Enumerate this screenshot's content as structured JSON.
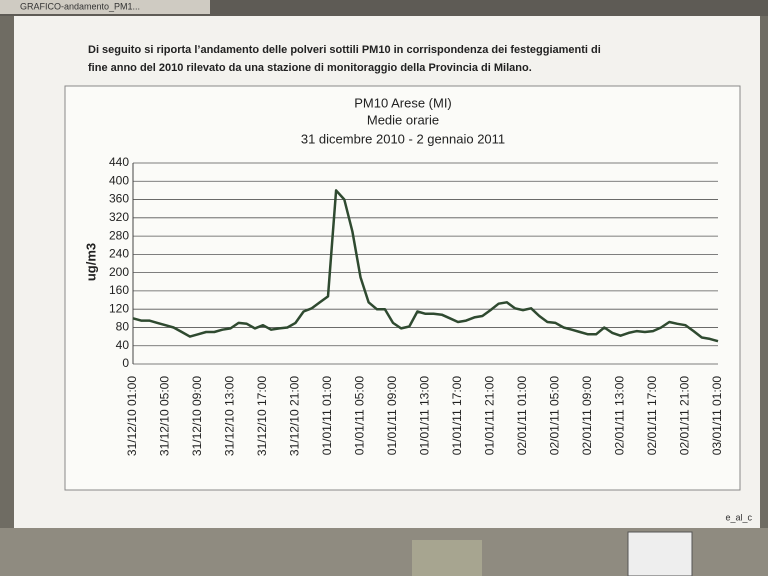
{
  "screen": {
    "tab_title": "GRAFICO-andamento_PM1...",
    "document_text": [
      "Di seguito si riporta l’andamento delle polveri sottili PM10 in corrispondenza dei festeggiamenti di",
      "fine anno del 2010 rilevato da una stazione di monitoraggio della Provincia di Milano."
    ],
    "footer_text": "e_al_c"
  },
  "chart_data": {
    "type": "line",
    "title": [
      "PM10 Arese (MI)",
      "Medie orarie",
      "31 dicembre 2010 - 2 gennaio 2011"
    ],
    "y_label": "ug/m3",
    "categories": [
      "31/12/10 01:00",
      null,
      null,
      null,
      "31/12/10 05:00",
      null,
      null,
      null,
      "31/12/10 09:00",
      null,
      null,
      null,
      "31/12/10 13:00",
      null,
      null,
      null,
      "31/12/10 17:00",
      null,
      null,
      null,
      "31/12/10 21:00",
      null,
      null,
      null,
      "01/01/11 01:00",
      null,
      null,
      null,
      "01/01/11 05:00",
      null,
      null,
      null,
      "01/01/11 09:00",
      null,
      null,
      null,
      "01/01/11 13:00",
      null,
      null,
      null,
      "01/01/11 17:00",
      null,
      null,
      null,
      "01/01/11 21:00",
      null,
      null,
      null,
      "02/01/11 01:00",
      null,
      null,
      null,
      "02/01/11 05:00",
      null,
      null,
      null,
      "02/01/11 09:00",
      null,
      null,
      null,
      "02/01/11 13:00",
      null,
      null,
      null,
      "02/01/11 17:00",
      null,
      null,
      null,
      "02/01/11 21:00",
      null,
      null,
      null,
      "03/01/11 01:00"
    ],
    "values": [
      100,
      95,
      95,
      90,
      85,
      80,
      70,
      60,
      65,
      70,
      70,
      75,
      78,
      90,
      88,
      78,
      85,
      75,
      78,
      80,
      90,
      115,
      122,
      135,
      148,
      380,
      360,
      290,
      190,
      135,
      120,
      120,
      90,
      78,
      82,
      115,
      110,
      110,
      108,
      100,
      92,
      95,
      102,
      105,
      118,
      132,
      135,
      122,
      118,
      122,
      105,
      92,
      90,
      80,
      75,
      70,
      65,
      65,
      80,
      68,
      62,
      68,
      72,
      70,
      72,
      80,
      92,
      88,
      85,
      72,
      58,
      55,
      50
    ],
    "color": "#2f4a30",
    "ylim": [
      0,
      440
    ],
    "yticks": [
      0,
      40,
      80,
      120,
      160,
      200,
      240,
      280,
      320,
      360,
      400,
      440
    ],
    "grid": true
  }
}
